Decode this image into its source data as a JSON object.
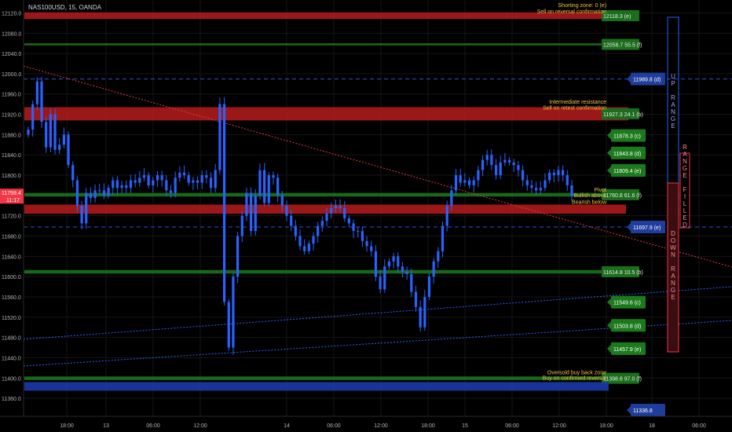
{
  "header": {
    "symbol_label": "NAS100USD, 15, OANDA"
  },
  "price_axis": {
    "min": 11340,
    "max": 12130,
    "ticks": [
      12120.0,
      12080.0,
      12040.0,
      12000.0,
      11960.0,
      11920.0,
      11880.0,
      11840.0,
      11800.0,
      11760.0,
      11720.0,
      11680.0,
      11640.0,
      11600.0,
      11560.0,
      11520.0,
      11480.0,
      11440.0,
      11400.0,
      11360.0
    ],
    "current_price": "11759.4",
    "countdown": "11:17",
    "current_color": "#f23645"
  },
  "time_axis": {
    "ticks": [
      "18:00",
      "13",
      "06:00",
      "12:00",
      "14",
      "06:00",
      "12:00",
      "18:00",
      "15",
      "06:00",
      "12:00",
      "18:00",
      "18",
      "06:00"
    ]
  },
  "zones": [
    {
      "kind": "resistance",
      "lo": 12108,
      "hi": 12121,
      "color": "#b71c1c",
      "right": "plot",
      "label": "12118.3 (e)"
    },
    {
      "kind": "support",
      "lo": 12056,
      "hi": 12060,
      "color": "#1b7a1b",
      "right": "plot",
      "label": "12058.7",
      "label2": "55.5 (f)"
    },
    {
      "kind": "resistance",
      "lo": 11908,
      "hi": 11934,
      "color": "#b71c1c",
      "right": "plot",
      "label": "11927.3",
      "label2": "24.1 (b)"
    },
    {
      "kind": "support",
      "lo": 11758,
      "hi": 11765,
      "color": "#1b7a1b",
      "right": "plot",
      "label": "11760.8",
      "label2": "61.6 (f)"
    },
    {
      "kind": "resistance",
      "lo": 11724,
      "hi": 11742,
      "color": "#b71c1c",
      "right": "axis",
      "label": ""
    },
    {
      "kind": "support",
      "lo": 11606,
      "hi": 11613,
      "color": "#1b7a1b",
      "right": "plot",
      "label": "11614.8",
      "label2": "10.5 (b)"
    },
    {
      "kind": "support",
      "lo": 11396,
      "hi": 11403,
      "color": "#1b7a1b",
      "right": "plot",
      "label": "11398.8",
      "label2": "97.0 (f)"
    },
    {
      "kind": "blue",
      "lo": 11375,
      "hi": 11392,
      "color": "#1c3aa8",
      "right": "plot",
      "label": ""
    }
  ],
  "levels": [
    {
      "price": 11989.8,
      "label": "11989.8 (d)",
      "style": "blue-dash",
      "color": "#1f3d9c"
    },
    {
      "price": 11697.9,
      "label": "11697.9 (e)",
      "style": "blue-dash",
      "color": "#1f3d9c"
    },
    {
      "price": 11878.3,
      "label": "11878.3 (c)",
      "style": "green",
      "color": "#1b7a1b"
    },
    {
      "price": 11843.8,
      "label": "11843.8 (d)",
      "style": "green",
      "color": "#1b7a1b"
    },
    {
      "price": 11809.4,
      "label": "11809.4 (e)",
      "style": "green",
      "color": "#1b7a1b"
    },
    {
      "price": 11549.6,
      "label": "11549.6 (c)",
      "style": "green",
      "color": "#1b7a1b"
    },
    {
      "price": 11503.8,
      "label": "11503.8 (d)",
      "style": "green",
      "color": "#1b7a1b"
    },
    {
      "price": 11457.9,
      "label": "11457.9 (e)",
      "style": "green",
      "color": "#1b7a1b"
    },
    {
      "price": 11336.8,
      "label": "11336.8",
      "style": "blue",
      "color": "#1f3d9c"
    }
  ],
  "notes": [
    {
      "price": 12136,
      "text": "Shorting zone: 0 (e)"
    },
    {
      "price": 12124,
      "text": "Sell on reversal confirmation"
    },
    {
      "price": 11946,
      "text": "Intermediate resistance"
    },
    {
      "price": 11934,
      "text": "Sell on retest confirmation"
    },
    {
      "price": 11772,
      "text": "Pivot"
    },
    {
      "price": 11761,
      "text": "Bullish above"
    },
    {
      "price": 11748,
      "text": "Bearish below"
    },
    {
      "price": 11412,
      "text": "Oversold buy back zone"
    },
    {
      "price": 11401,
      "text": "Buy on confirmed reversal"
    }
  ],
  "range_panel": {
    "up_label": "UP RANGE",
    "down_label": "DOWN RANGE",
    "filled_label": "RANGE FILLED",
    "up_color": "#2962ff",
    "down_color": "#f23645"
  },
  "chart_data": {
    "type": "candlestick",
    "note": "approximate closing path of the 15-minute series, read from the chart",
    "close_path": [
      11890,
      11940,
      11985,
      11905,
      11855,
      11920,
      11850,
      11860,
      11880,
      11820,
      11790,
      11740,
      11705,
      11765,
      11755,
      11770,
      11770,
      11760,
      11775,
      11790,
      11775,
      11780,
      11775,
      11790,
      11785,
      11795,
      11800,
      11780,
      11790,
      11800,
      11790,
      11770,
      11765,
      11795,
      11805,
      11800,
      11785,
      11790,
      11785,
      11800,
      11795,
      11775,
      11810,
      11940,
      11550,
      11460,
      11600,
      11680,
      11720,
      11765,
      11690,
      11760,
      11810,
      11745,
      11800,
      11795,
      11760,
      11740,
      11720,
      11700,
      11680,
      11660,
      11650,
      11665,
      11680,
      11700,
      11710,
      11725,
      11735,
      11740,
      11735,
      11715,
      11705,
      11690,
      11690,
      11670,
      11660,
      11650,
      11600,
      11575,
      11620,
      11630,
      11640,
      11620,
      11610,
      11605,
      11570,
      11540,
      11500,
      11560,
      11600,
      11630,
      11650,
      11700,
      11740,
      11770,
      11800,
      11785,
      11790,
      11780,
      11790,
      11810,
      11830,
      11840,
      11820,
      11800,
      11825,
      11830,
      11825,
      11820,
      11810,
      11790,
      11780,
      11775,
      11770,
      11775,
      11790,
      11805,
      11800,
      11810,
      11800,
      11780,
      11759
    ]
  }
}
